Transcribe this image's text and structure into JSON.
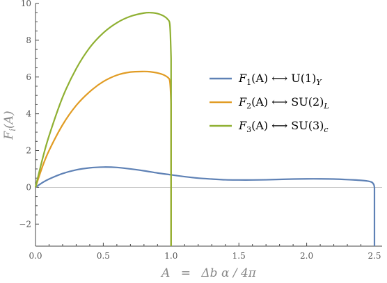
{
  "chart_data": {
    "type": "line",
    "title": "",
    "xlabel": "A = Δb α / 4π",
    "ylabel": "F_i(A)",
    "xlim": [
      0,
      2.5
    ],
    "ylim": [
      -3.2,
      10
    ],
    "grid": false,
    "legend_position": "right",
    "x_ticks": [
      0.0,
      0.5,
      1.0,
      1.5,
      2.0,
      2.5
    ],
    "x_tick_labels": [
      "0.0",
      "0.5",
      "1.0",
      "1.5",
      "2.0",
      "2.5"
    ],
    "y_ticks": [
      -2,
      0,
      2,
      4,
      6,
      8,
      10
    ],
    "y_tick_labels": [
      "−2",
      "0",
      "2",
      "4",
      "6",
      "8",
      "10"
    ],
    "series": [
      {
        "name": "F1(A) ⟷ U(1)Y",
        "color": "#5e81b5",
        "x": [
          0,
          0.05,
          0.1,
          0.2,
          0.3,
          0.4,
          0.5,
          0.6,
          0.7,
          0.8,
          0.9,
          1.0,
          1.1,
          1.2,
          1.3,
          1.4,
          1.5,
          1.6,
          1.7,
          1.8,
          1.9,
          2.0,
          2.1,
          2.2,
          2.3,
          2.4,
          2.45,
          2.48,
          2.495,
          2.5,
          2.5
        ],
        "y": [
          0,
          0.25,
          0.45,
          0.75,
          0.95,
          1.06,
          1.1,
          1.08,
          1.0,
          0.9,
          0.78,
          0.68,
          0.58,
          0.5,
          0.45,
          0.41,
          0.4,
          0.4,
          0.41,
          0.43,
          0.45,
          0.46,
          0.46,
          0.45,
          0.42,
          0.38,
          0.34,
          0.28,
          0.15,
          0.0,
          -3.2
        ]
      },
      {
        "name": "F2(A) ⟷ SU(2)L",
        "color": "#e19c24",
        "x": [
          0,
          0.05,
          0.1,
          0.2,
          0.3,
          0.4,
          0.5,
          0.6,
          0.7,
          0.8,
          0.85,
          0.9,
          0.95,
          0.98,
          0.99,
          0.995,
          1.0,
          1.0
        ],
        "y": [
          0,
          1.1,
          2.0,
          3.4,
          4.45,
          5.2,
          5.75,
          6.1,
          6.27,
          6.3,
          6.28,
          6.22,
          6.1,
          5.95,
          5.8,
          5.4,
          4.5,
          -3.2
        ]
      },
      {
        "name": "F3(A) ⟷ SU(3)c",
        "color": "#8fb032",
        "x": [
          0,
          0.05,
          0.1,
          0.2,
          0.3,
          0.4,
          0.5,
          0.6,
          0.7,
          0.8,
          0.85,
          0.9,
          0.95,
          0.98,
          0.99,
          0.995,
          1.0,
          1.0
        ],
        "y": [
          0,
          1.5,
          2.8,
          4.9,
          6.45,
          7.6,
          8.4,
          8.95,
          9.3,
          9.48,
          9.5,
          9.45,
          9.3,
          9.1,
          8.9,
          8.3,
          7.0,
          -3.2
        ]
      }
    ]
  },
  "legend_labels": [
    {
      "fn": "F",
      "sub": "1",
      "arg": "(A) ⟷ U(1)",
      "gsub": "Y"
    },
    {
      "fn": "F",
      "sub": "2",
      "arg": "(A) ⟷ SU(2)",
      "gsub": "L"
    },
    {
      "fn": "F",
      "sub": "3",
      "arg": "(A) ⟷ SU(3)",
      "gsub": "c"
    }
  ],
  "axis_titles": {
    "x_main": "A",
    "x_eq": "=",
    "x_rest": "Δb α / 4π",
    "y_main": "F",
    "y_sub": "i",
    "y_rest": "(A)"
  }
}
